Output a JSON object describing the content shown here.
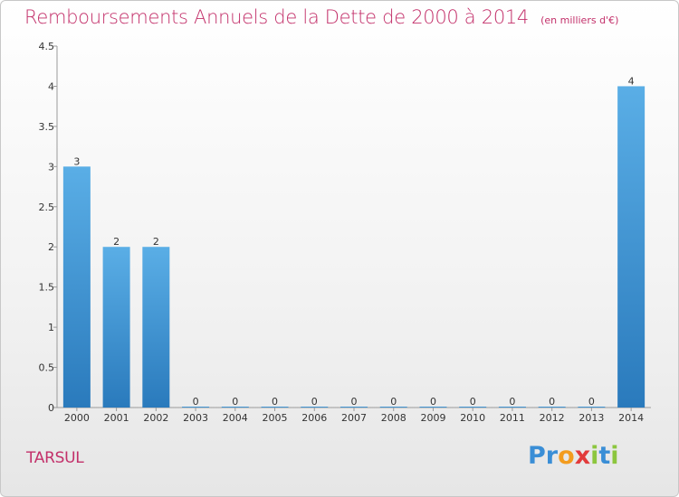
{
  "chart_data": {
    "type": "bar",
    "title": "Remboursements Annuels de la Dette de 2000 à 2014",
    "subtitle": "(en milliers d'€)",
    "categories": [
      "2000",
      "2001",
      "2002",
      "2003",
      "2004",
      "2005",
      "2006",
      "2007",
      "2008",
      "2009",
      "2010",
      "2011",
      "2012",
      "2013",
      "2014"
    ],
    "values": [
      3,
      2,
      2,
      0,
      0,
      0,
      0,
      0,
      0,
      0,
      0,
      0,
      0,
      0,
      4
    ],
    "value_labels": [
      "3",
      "2",
      "2",
      "0",
      "0",
      "0",
      "0",
      "0",
      "0",
      "0",
      "0",
      "0",
      "0",
      "0",
      "4"
    ],
    "yticks": [
      0,
      0.5,
      1,
      1.5,
      2,
      2.5,
      3,
      3.5,
      4,
      4.5
    ],
    "ytick_labels": [
      "0",
      "0.5",
      "1",
      "1.5",
      "2",
      "2.5",
      "3",
      "3.5",
      "4",
      "4.5"
    ],
    "ylim": [
      0,
      4.5
    ],
    "xlabel": "",
    "ylabel": "",
    "grid": false,
    "legend": "none",
    "bar_color_top": "#5aaee6",
    "bar_color_bottom": "#2a7abc"
  },
  "footer": {
    "commune": "TARSUL",
    "logo_letters": [
      {
        "char": "P",
        "color": "#3a8ed6"
      },
      {
        "char": "r",
        "color": "#3a8ed6"
      },
      {
        "char": "o",
        "color": "#f39c1e"
      },
      {
        "char": "x",
        "color": "#e23b3b"
      },
      {
        "char": "i",
        "color": "#8cc63e"
      },
      {
        "char": "t",
        "color": "#3a8ed6"
      },
      {
        "char": "i",
        "color": "#8cc63e"
      }
    ]
  }
}
